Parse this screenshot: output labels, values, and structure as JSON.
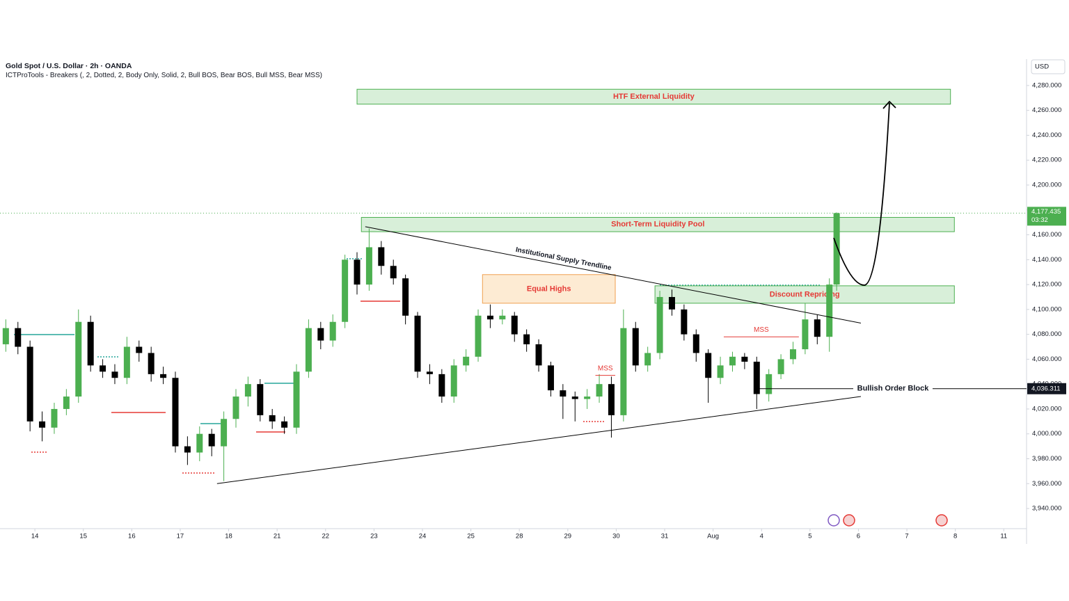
{
  "chart_data": {
    "type": "candlestick",
    "title": "Gold Spot / U.S. Dollar · 2h · OANDA",
    "subtitle": "ICTProTools - Breakers (, 2, Dotted, 2, Body Only, Solid, 2, Bull BOS, Bear BOS, Bull MSS, Bear MSS)",
    "currency": "USD",
    "x": [
      -0.6,
      -0.35,
      -0.1,
      0.15,
      0.4,
      0.65,
      0.9,
      1.15,
      1.4,
      1.65,
      1.9,
      2.15,
      2.4,
      2.65,
      2.9,
      3.15,
      3.4,
      3.65,
      3.9,
      4.15,
      4.4,
      4.65,
      4.9,
      5.15,
      5.4,
      5.65,
      5.9,
      6.15,
      6.4,
      6.65,
      6.9,
      7.15,
      7.4,
      7.65,
      7.9,
      8.15,
      8.4,
      8.65,
      8.9,
      9.15,
      9.4,
      9.65,
      9.9,
      10.15,
      10.4,
      10.65,
      10.9,
      11.15,
      11.4,
      11.65,
      11.9,
      12.15,
      12.4,
      12.65,
      12.9,
      13.15,
      13.4,
      13.65,
      13.9,
      14.15,
      14.4,
      14.65,
      14.9,
      15.15,
      15.4,
      15.65,
      15.9,
      16.15,
      16.4,
      16.55
    ],
    "open": [
      4072,
      4085,
      4070,
      4010,
      4005,
      4020,
      4030,
      4090,
      4055,
      4050,
      4045,
      4070,
      4065,
      4048,
      4045,
      3990,
      3985,
      4000,
      3990,
      4012,
      4030,
      4040,
      4015,
      4010,
      4005,
      4050,
      4085,
      4075,
      4090,
      4140,
      4120,
      4150,
      4135,
      4125,
      4095,
      4050,
      4048,
      4030,
      4055,
      4062,
      4095,
      4092,
      4095,
      4080,
      4072,
      4055,
      4035,
      4030,
      4028,
      4030,
      4040,
      4015,
      4085,
      4055,
      4065,
      4110,
      4100,
      4080,
      4065,
      4045,
      4055,
      4062,
      4058,
      4032,
      4048,
      4060,
      4068,
      4092,
      4078,
      4120
    ],
    "high": [
      4092,
      4090,
      4075,
      4018,
      4025,
      4036,
      4100,
      4095,
      4060,
      4056,
      4078,
      4075,
      4070,
      4054,
      4050,
      3998,
      4006,
      4004,
      4018,
      4036,
      4046,
      4044,
      4020,
      4014,
      4056,
      4092,
      4090,
      4096,
      4144,
      4146,
      4165,
      4155,
      4140,
      4128,
      4098,
      4056,
      4052,
      4060,
      4068,
      4100,
      4104,
      4100,
      4098,
      4084,
      4076,
      4058,
      4040,
      4034,
      4036,
      4048,
      4046,
      4100,
      4090,
      4070,
      4115,
      4116,
      4104,
      4084,
      4068,
      4062,
      4066,
      4065,
      4062,
      4052,
      4064,
      4074,
      4105,
      4096,
      4125,
      4178
    ],
    "low": [
      4066,
      4064,
      4002,
      3994,
      4000,
      4015,
      4025,
      4050,
      4045,
      4040,
      4040,
      4058,
      4042,
      4040,
      3985,
      3975,
      3978,
      3982,
      3962,
      4005,
      4022,
      4010,
      4004,
      4000,
      4000,
      4045,
      4068,
      4070,
      4085,
      4112,
      4115,
      4128,
      4120,
      4088,
      4045,
      4040,
      4025,
      4025,
      4050,
      4058,
      4085,
      4088,
      4074,
      4066,
      4050,
      4030,
      4012,
      4010,
      4020,
      4025,
      3997,
      4010,
      4050,
      4050,
      4060,
      4095,
      4075,
      4058,
      4025,
      4040,
      4050,
      4052,
      4020,
      4026,
      4044,
      4056,
      4064,
      4072,
      4066,
      4115
    ],
    "close": [
      4085,
      4070,
      4010,
      4005,
      4020,
      4030,
      4090,
      4055,
      4050,
      4045,
      4070,
      4065,
      4048,
      4045,
      3990,
      3985,
      4000,
      3990,
      4012,
      4030,
      4040,
      4015,
      4010,
      4005,
      4050,
      4085,
      4075,
      4090,
      4140,
      4120,
      4150,
      4135,
      4125,
      4095,
      4050,
      4048,
      4030,
      4055,
      4062,
      4095,
      4092,
      4095,
      4080,
      4072,
      4055,
      4035,
      4030,
      4028,
      4030,
      4040,
      4015,
      4085,
      4055,
      4065,
      4110,
      4100,
      4080,
      4065,
      4045,
      4055,
      4062,
      4058,
      4032,
      4048,
      4060,
      4068,
      4092,
      4078,
      4120,
      4177.435
    ],
    "up_color": "#4caf50",
    "down_color": "#000000",
    "xlim": [
      -0.72,
      20.47
    ],
    "ylim": [
      3923.8,
      4301.2
    ],
    "xticks": [
      {
        "value": 0,
        "label": "14"
      },
      {
        "value": 1,
        "label": "15"
      },
      {
        "value": 2,
        "label": "16"
      },
      {
        "value": 3,
        "label": "17"
      },
      {
        "value": 4,
        "label": "18"
      },
      {
        "value": 5,
        "label": "21"
      },
      {
        "value": 6,
        "label": "22"
      },
      {
        "value": 7,
        "label": "23"
      },
      {
        "value": 8,
        "label": "24"
      },
      {
        "value": 9,
        "label": "25"
      },
      {
        "value": 10,
        "label": "28"
      },
      {
        "value": 11,
        "label": "29"
      },
      {
        "value": 12,
        "label": "30"
      },
      {
        "value": 13,
        "label": "31"
      },
      {
        "value": 14,
        "label": "Aug"
      },
      {
        "value": 15,
        "label": "4"
      },
      {
        "value": 16,
        "label": "5"
      },
      {
        "value": 17,
        "label": "6"
      },
      {
        "value": 18,
        "label": "7"
      },
      {
        "value": 19,
        "label": "8"
      },
      {
        "value": 20,
        "label": "11"
      }
    ],
    "yticks": [
      {
        "value": 3940,
        "label": "3,940.000"
      },
      {
        "value": 3960,
        "label": "3,960.000"
      },
      {
        "value": 3980,
        "label": "3,980.000"
      },
      {
        "value": 4000,
        "label": "4,000.000"
      },
      {
        "value": 4020,
        "label": "4,020.000"
      },
      {
        "value": 4040,
        "label": "4,040.000"
      },
      {
        "value": 4060,
        "label": "4,060.000"
      },
      {
        "value": 4080,
        "label": "4,080.000"
      },
      {
        "value": 4100,
        "label": "4,100.000"
      },
      {
        "value": 4120,
        "label": "4,120.000"
      },
      {
        "value": 4140,
        "label": "4,140.000"
      },
      {
        "value": 4160,
        "label": "4,160.000"
      },
      {
        "value": 4180,
        "label": "4,180.000"
      },
      {
        "value": 4200,
        "label": "4,200.000"
      },
      {
        "value": 4220,
        "label": "4,220.000"
      },
      {
        "value": 4240,
        "label": "4,240.000"
      },
      {
        "value": 4260,
        "label": "4,260.000"
      },
      {
        "value": 4280,
        "label": "4,280.000"
      }
    ],
    "last_price_label": "4,177.435",
    "countdown": "03:32",
    "zones": [
      {
        "label": "HTF External Liquidity",
        "x": [
          6.65,
          18.9
        ],
        "y": [
          4265,
          4277
        ],
        "color": "#d8efd9",
        "border": "#4caf50"
      },
      {
        "label": "Short-Term Liquidity Pool",
        "x": [
          6.74,
          18.98
        ],
        "y": [
          4162.5,
          4174
        ],
        "color": "#d8efd9",
        "border": "#4caf50"
      },
      {
        "label": "Equal Highs",
        "x": [
          9.24,
          11.98
        ],
        "y": [
          4105,
          4128
        ],
        "color": "#fdebd3",
        "border": "#f0a050"
      },
      {
        "label": "Discount Repricing",
        "x": [
          12.8,
          18.98
        ],
        "y": [
          4105,
          4119
        ],
        "color": "#d8efd9",
        "border": "#4caf50"
      }
    ],
    "trendlines": [
      {
        "label": "Institutional Supply Trendline",
        "x": [
          6.82,
          17.05
        ],
        "y": [
          4166.5,
          4089
        ]
      },
      {
        "x": [
          3.76,
          17.05
        ],
        "y": [
          3960,
          4030
        ]
      }
    ],
    "levels": [
      {
        "label": "MSS",
        "x": [
          11.57,
          11.98
        ],
        "y": 4047,
        "color": "#e53935"
      },
      {
        "label": "MSS",
        "x": [
          14.22,
          15.77
        ],
        "y": 4078,
        "color": "#e53935"
      }
    ],
    "order_block": {
      "label": "Bullish Order Block",
      "x": 14.84,
      "price": 4036.311,
      "price_label": "4,036.311"
    }
  }
}
